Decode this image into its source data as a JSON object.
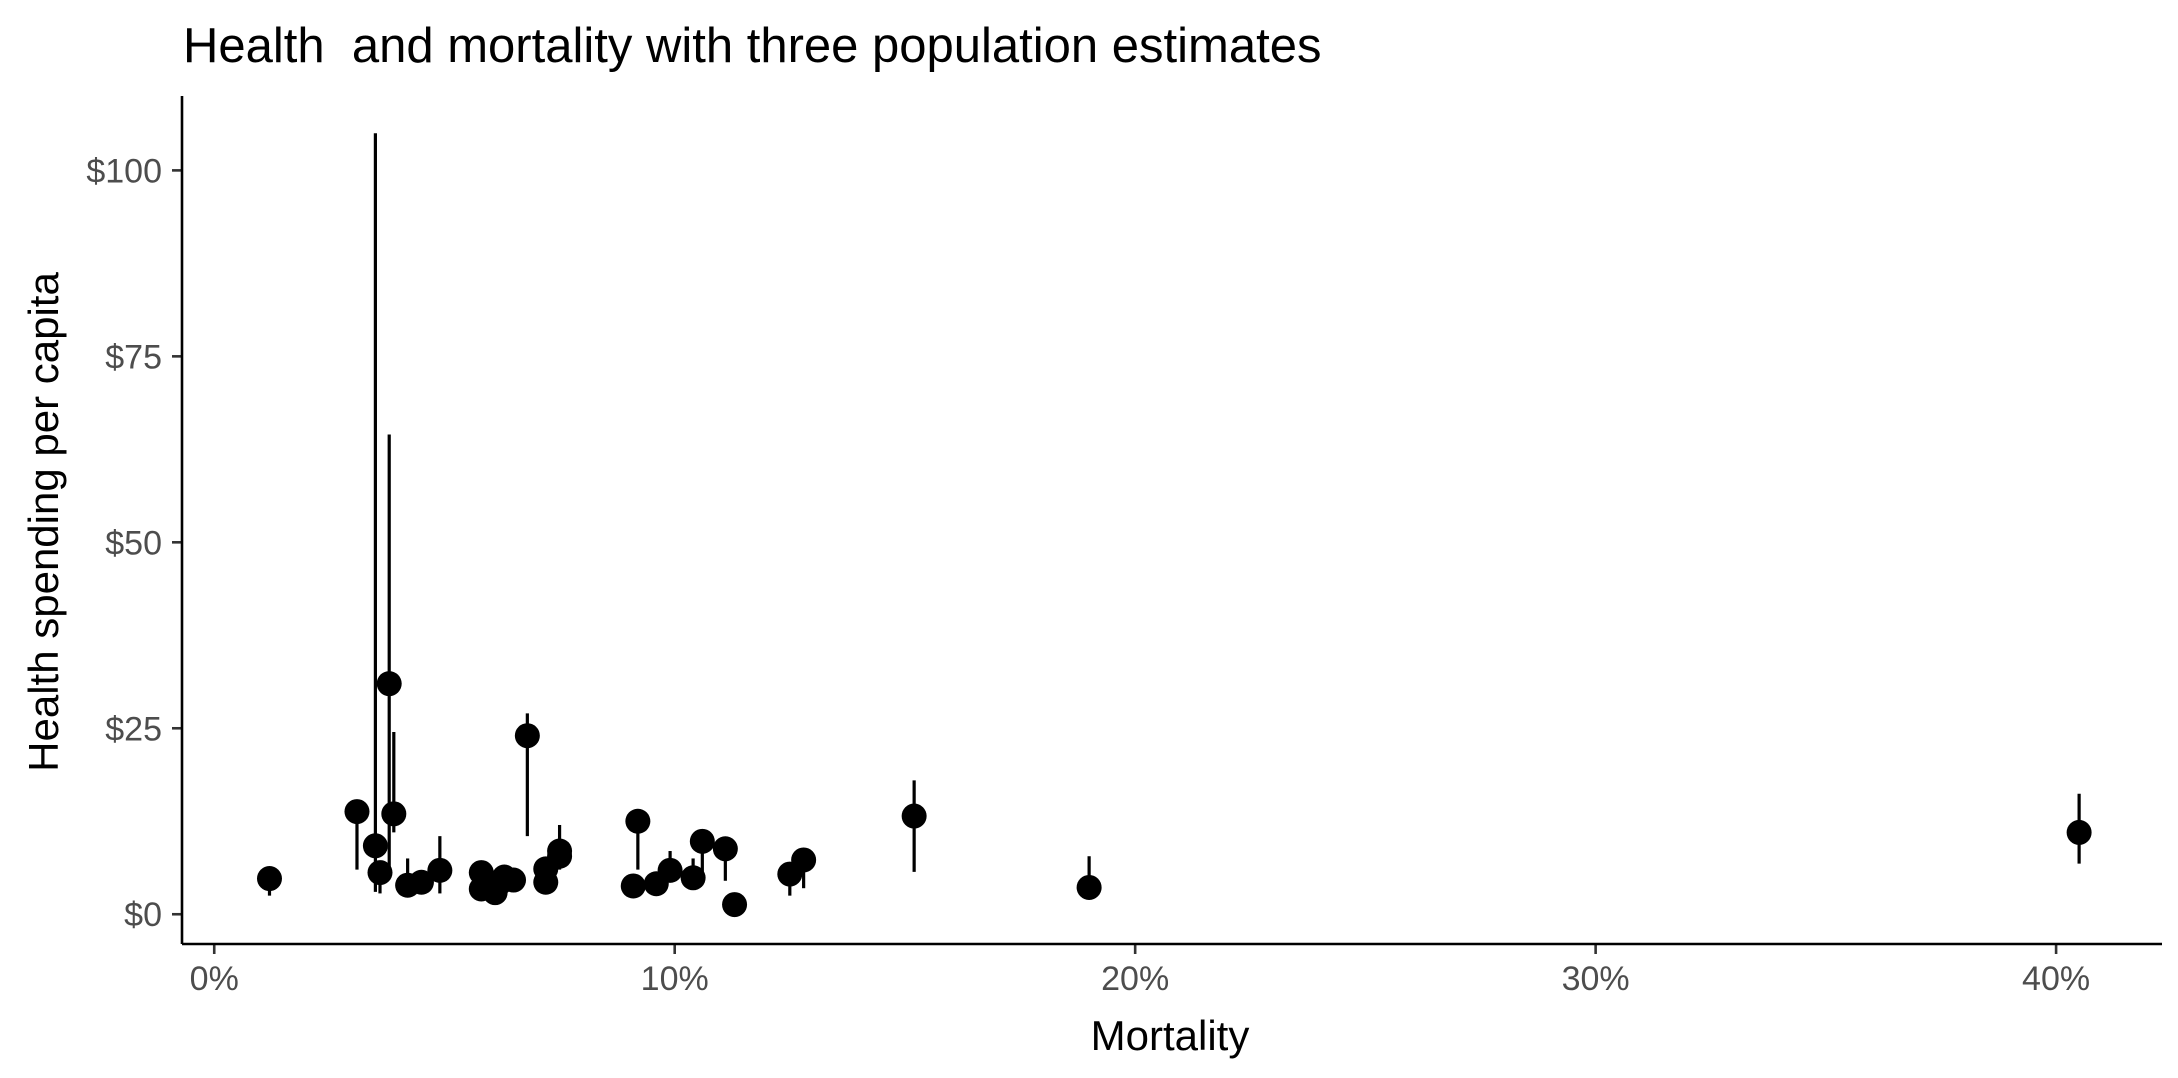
{
  "chart_data": {
    "type": "scatter",
    "title": "Health  and mortality with three population estimates",
    "xlabel": "Mortality",
    "ylabel": "Health spending per capita",
    "xlim": [
      -0.007,
      0.423
    ],
    "ylim": [
      -4,
      110
    ],
    "x_ticks": [
      0,
      0.1,
      0.2,
      0.3,
      0.4
    ],
    "x_tick_labels": [
      "0%",
      "10%",
      "20%",
      "30%",
      "40%"
    ],
    "y_ticks": [
      0,
      25,
      50,
      75,
      100
    ],
    "y_tick_labels": [
      "$0",
      "$25",
      "$50",
      "$75",
      "$100"
    ],
    "grid": false,
    "legend": "none",
    "colors": {
      "points": "#000000",
      "axis": "#000000",
      "tick_labels": "#4d4d4d"
    },
    "points": [
      {
        "x": 0.012,
        "y": 4.8,
        "ymin": 2.5,
        "ymax": 6.0
      },
      {
        "x": 0.031,
        "y": 13.8,
        "ymin": 6.0,
        "ymax": 14.5
      },
      {
        "x": 0.035,
        "y": 9.2,
        "ymin": 3.0,
        "ymax": 105.0
      },
      {
        "x": 0.036,
        "y": 5.6,
        "ymin": 2.8,
        "ymax": 7.0
      },
      {
        "x": 0.038,
        "y": 31.0,
        "ymin": 5.0,
        "ymax": 64.5
      },
      {
        "x": 0.039,
        "y": 13.5,
        "ymin": 11.0,
        "ymax": 24.5
      },
      {
        "x": 0.042,
        "y": 3.9,
        "ymin": 2.5,
        "ymax": 7.5
      },
      {
        "x": 0.045,
        "y": 4.3,
        "ymin": 3.0,
        "ymax": 5.5
      },
      {
        "x": 0.049,
        "y": 5.9,
        "ymin": 2.8,
        "ymax": 10.5
      },
      {
        "x": 0.058,
        "y": 3.4,
        "ymin": 2.5,
        "ymax": 4.5
      },
      {
        "x": 0.058,
        "y": 5.6,
        "ymin": 3.5,
        "ymax": 6.5
      },
      {
        "x": 0.061,
        "y": 2.9,
        "ymin": 2.0,
        "ymax": 4.0
      },
      {
        "x": 0.062,
        "y": 4.2,
        "ymin": 3.0,
        "ymax": 5.5
      },
      {
        "x": 0.063,
        "y": 5.0,
        "ymin": 4.0,
        "ymax": 6.0
      },
      {
        "x": 0.065,
        "y": 4.6,
        "ymin": 3.5,
        "ymax": 5.5
      },
      {
        "x": 0.068,
        "y": 24.0,
        "ymin": 10.5,
        "ymax": 27.0
      },
      {
        "x": 0.072,
        "y": 4.3,
        "ymin": 3.5,
        "ymax": 6.0
      },
      {
        "x": 0.072,
        "y": 6.1,
        "ymin": 4.5,
        "ymax": 7.5
      },
      {
        "x": 0.075,
        "y": 8.5,
        "ymin": 6.5,
        "ymax": 12.0
      },
      {
        "x": 0.075,
        "y": 7.8,
        "ymin": 6.0,
        "ymax": 9.0
      },
      {
        "x": 0.091,
        "y": 3.8,
        "ymin": 3.0,
        "ymax": 4.5
      },
      {
        "x": 0.092,
        "y": 12.5,
        "ymin": 6.0,
        "ymax": 13.5
      },
      {
        "x": 0.096,
        "y": 4.1,
        "ymin": 3.5,
        "ymax": 5.0
      },
      {
        "x": 0.099,
        "y": 5.9,
        "ymin": 4.5,
        "ymax": 8.5
      },
      {
        "x": 0.104,
        "y": 4.9,
        "ymin": 4.0,
        "ymax": 7.5
      },
      {
        "x": 0.106,
        "y": 9.8,
        "ymin": 5.5,
        "ymax": 10.5
      },
      {
        "x": 0.111,
        "y": 8.8,
        "ymin": 4.5,
        "ymax": 9.5
      },
      {
        "x": 0.113,
        "y": 1.3,
        "ymin": 1.0,
        "ymax": 2.0
      },
      {
        "x": 0.125,
        "y": 5.4,
        "ymin": 2.5,
        "ymax": 6.0
      },
      {
        "x": 0.128,
        "y": 7.3,
        "ymin": 3.5,
        "ymax": 8.5
      },
      {
        "x": 0.152,
        "y": 13.2,
        "ymin": 5.7,
        "ymax": 18.0
      },
      {
        "x": 0.19,
        "y": 3.6,
        "ymin": 3.0,
        "ymax": 7.8
      },
      {
        "x": 0.405,
        "y": 11.0,
        "ymin": 6.8,
        "ymax": 16.2
      }
    ]
  }
}
